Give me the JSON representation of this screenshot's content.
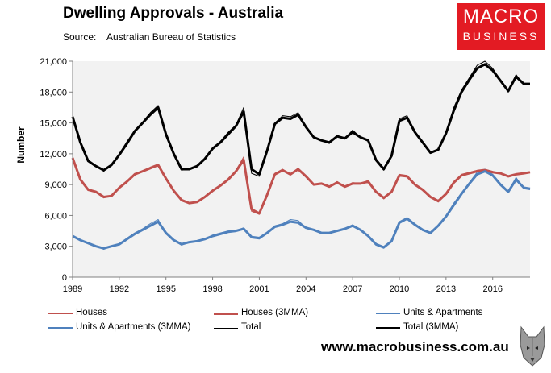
{
  "header": {
    "title": "Dwelling Approvals - Australia",
    "source_label": "Source:",
    "source_value": "Australian Bureau of Statistics"
  },
  "logo": {
    "line1": "MACRO",
    "line2": "BUSINESS",
    "color": "#e31b23"
  },
  "footer": {
    "url": "www.macrobusiness.com.au",
    "mascot": "wolf-head-icon"
  },
  "chart_data": {
    "type": "line",
    "title": "Dwelling Approvals - Australia",
    "xlabel": "",
    "ylabel": "Number",
    "xlim": [
      1989.0,
      2018.4
    ],
    "ylim": [
      0,
      21000
    ],
    "x_ticks": [
      1989,
      1992,
      1995,
      1998,
      2001,
      2004,
      2007,
      2010,
      2013,
      2016
    ],
    "x_tick_labels": [
      "1989",
      "1992",
      "1995",
      "1998",
      "2001",
      "2004",
      "2007",
      "2010",
      "2013",
      "2016"
    ],
    "y_ticks": [
      0,
      3000,
      6000,
      9000,
      12000,
      15000,
      18000,
      21000
    ],
    "y_tick_labels": [
      "0",
      "3,000",
      "6,000",
      "9,000",
      "12,000",
      "15,000",
      "18,000",
      "21,000"
    ],
    "grid": false,
    "legend_position": "bottom",
    "series": [
      {
        "name": "Houses",
        "color": "#c0504d",
        "width": 1,
        "x": [
          1989.0,
          1989.5,
          1990.0,
          1990.5,
          1991.0,
          1991.5,
          1992.0,
          1992.5,
          1993.0,
          1993.5,
          1994.0,
          1994.5,
          1995.0,
          1995.5,
          1996.0,
          1996.5,
          1997.0,
          1997.5,
          1998.0,
          1998.5,
          1999.0,
          1999.5,
          2000.0,
          2000.5,
          2001.0,
          2001.5,
          2002.0,
          2002.5,
          2003.0,
          2003.5,
          2004.0,
          2004.5,
          2005.0,
          2005.5,
          2006.0,
          2006.5,
          2007.0,
          2007.5,
          2008.0,
          2008.5,
          2009.0,
          2009.5,
          2010.0,
          2010.5,
          2011.0,
          2011.5,
          2012.0,
          2012.5,
          2013.0,
          2013.5,
          2014.0,
          2014.5,
          2015.0,
          2015.5,
          2016.0,
          2016.5,
          2017.0,
          2017.5,
          2018.0,
          2018.4
        ],
        "values": [
          11700,
          9400,
          8600,
          8300,
          7700,
          7900,
          8800,
          9300,
          10100,
          10300,
          10700,
          11000,
          9500,
          8400,
          7400,
          7200,
          7300,
          7800,
          8500,
          8900,
          9600,
          10400,
          11700,
          6400,
          6100,
          8000,
          10100,
          10500,
          10000,
          10600,
          9800,
          9000,
          9100,
          8800,
          9300,
          8800,
          9200,
          9100,
          9400,
          8300,
          7600,
          8300,
          10000,
          9900,
          9000,
          8500,
          7800,
          7300,
          8100,
          9300,
          10000,
          10200,
          10400,
          10500,
          10300,
          10100,
          9800,
          10000,
          10100,
          10200
        ]
      },
      {
        "name": "Houses (3MMA)",
        "color": "#c0504d",
        "width": 3,
        "x": [
          1989.0,
          1989.5,
          1990.0,
          1990.5,
          1991.0,
          1991.5,
          1992.0,
          1992.5,
          1993.0,
          1993.5,
          1994.0,
          1994.5,
          1995.0,
          1995.5,
          1996.0,
          1996.5,
          1997.0,
          1997.5,
          1998.0,
          1998.5,
          1999.0,
          1999.5,
          2000.0,
          2000.5,
          2001.0,
          2001.5,
          2002.0,
          2002.5,
          2003.0,
          2003.5,
          2004.0,
          2004.5,
          2005.0,
          2005.5,
          2006.0,
          2006.5,
          2007.0,
          2007.5,
          2008.0,
          2008.5,
          2009.0,
          2009.5,
          2010.0,
          2010.5,
          2011.0,
          2011.5,
          2012.0,
          2012.5,
          2013.0,
          2013.5,
          2014.0,
          2014.5,
          2015.0,
          2015.5,
          2016.0,
          2016.5,
          2017.0,
          2017.5,
          2018.0,
          2018.4
        ],
        "values": [
          11600,
          9500,
          8500,
          8300,
          7800,
          7900,
          8700,
          9300,
          10000,
          10300,
          10600,
          10900,
          9600,
          8400,
          7500,
          7200,
          7300,
          7800,
          8400,
          8900,
          9500,
          10300,
          11400,
          6600,
          6200,
          8000,
          10000,
          10400,
          10000,
          10500,
          9800,
          9000,
          9100,
          8800,
          9200,
          8800,
          9100,
          9100,
          9300,
          8300,
          7700,
          8300,
          9900,
          9800,
          9000,
          8500,
          7800,
          7400,
          8100,
          9200,
          9900,
          10100,
          10300,
          10400,
          10200,
          10100,
          9800,
          10000,
          10100,
          10200
        ]
      },
      {
        "name": "Units & Apartments",
        "color": "#4f81bd",
        "width": 1,
        "x": [
          1989.0,
          1989.5,
          1990.0,
          1990.5,
          1991.0,
          1991.5,
          1992.0,
          1992.5,
          1993.0,
          1993.5,
          1994.0,
          1994.5,
          1995.0,
          1995.5,
          1996.0,
          1996.5,
          1997.0,
          1997.5,
          1998.0,
          1998.5,
          1999.0,
          1999.5,
          2000.0,
          2000.5,
          2001.0,
          2001.5,
          2002.0,
          2002.5,
          2003.0,
          2003.5,
          2004.0,
          2004.5,
          2005.0,
          2005.5,
          2006.0,
          2006.5,
          2007.0,
          2007.5,
          2008.0,
          2008.5,
          2009.0,
          2009.5,
          2010.0,
          2010.5,
          2011.0,
          2011.5,
          2012.0,
          2012.5,
          2013.0,
          2013.5,
          2014.0,
          2014.5,
          2015.0,
          2015.5,
          2016.0,
          2016.5,
          2017.0,
          2017.5,
          2018.0,
          2018.4
        ],
        "values": [
          4000,
          3600,
          3300,
          3000,
          2700,
          3000,
          3200,
          3800,
          4300,
          4700,
          5200,
          5600,
          4200,
          3600,
          3100,
          3400,
          3500,
          3700,
          4100,
          4300,
          4500,
          4500,
          4800,
          3800,
          3700,
          4300,
          5000,
          5200,
          5600,
          5500,
          4800,
          4600,
          4300,
          4200,
          4500,
          4700,
          5100,
          4600,
          4000,
          3100,
          2800,
          3500,
          5400,
          5800,
          5200,
          4600,
          4300,
          5000,
          6000,
          7200,
          8200,
          9200,
          10200,
          10500,
          10000,
          9000,
          8200,
          9700,
          8600,
          8500
        ]
      },
      {
        "name": "Units & Apartments (3MMA)",
        "color": "#4f81bd",
        "width": 3,
        "x": [
          1989.0,
          1989.5,
          1990.0,
          1990.5,
          1991.0,
          1991.5,
          1992.0,
          1992.5,
          1993.0,
          1993.5,
          1994.0,
          1994.5,
          1995.0,
          1995.5,
          1996.0,
          1996.5,
          1997.0,
          1997.5,
          1998.0,
          1998.5,
          1999.0,
          1999.5,
          2000.0,
          2000.5,
          2001.0,
          2001.5,
          2002.0,
          2002.5,
          2003.0,
          2003.5,
          2004.0,
          2004.5,
          2005.0,
          2005.5,
          2006.0,
          2006.5,
          2007.0,
          2007.5,
          2008.0,
          2008.5,
          2009.0,
          2009.5,
          2010.0,
          2010.5,
          2011.0,
          2011.5,
          2012.0,
          2012.5,
          2013.0,
          2013.5,
          2014.0,
          2014.5,
          2015.0,
          2015.5,
          2016.0,
          2016.5,
          2017.0,
          2017.5,
          2018.0,
          2018.4
        ],
        "values": [
          4000,
          3600,
          3300,
          3000,
          2800,
          3000,
          3200,
          3700,
          4200,
          4600,
          5000,
          5400,
          4300,
          3600,
          3200,
          3400,
          3500,
          3700,
          4000,
          4200,
          4400,
          4500,
          4700,
          3900,
          3800,
          4300,
          4900,
          5100,
          5400,
          5300,
          4800,
          4600,
          4300,
          4300,
          4500,
          4700,
          5000,
          4600,
          4000,
          3200,
          2900,
          3500,
          5300,
          5700,
          5100,
          4600,
          4300,
          5000,
          5900,
          7000,
          8100,
          9100,
          10000,
          10300,
          9900,
          9000,
          8300,
          9500,
          8700,
          8600
        ]
      },
      {
        "name": "Total",
        "color": "#000000",
        "width": 1,
        "x": [
          1989.0,
          1989.5,
          1990.0,
          1990.5,
          1991.0,
          1991.5,
          1992.0,
          1992.5,
          1993.0,
          1993.5,
          1994.0,
          1994.5,
          1995.0,
          1995.5,
          1996.0,
          1996.5,
          1997.0,
          1997.5,
          1998.0,
          1998.5,
          1999.0,
          1999.5,
          2000.0,
          2000.5,
          2001.0,
          2001.5,
          2002.0,
          2002.5,
          2003.0,
          2003.5,
          2004.0,
          2004.5,
          2005.0,
          2005.5,
          2006.0,
          2006.5,
          2007.0,
          2007.5,
          2008.0,
          2008.5,
          2009.0,
          2009.5,
          2010.0,
          2010.5,
          2011.0,
          2011.5,
          2012.0,
          2012.5,
          2013.0,
          2013.5,
          2014.0,
          2014.5,
          2015.0,
          2015.5,
          2016.0,
          2016.5,
          2017.0,
          2017.5,
          2018.0,
          2018.4
        ],
        "values": [
          15700,
          13000,
          11300,
          10800,
          10300,
          10900,
          12000,
          13200,
          14300,
          15100,
          16000,
          16700,
          13700,
          11900,
          10400,
          10500,
          10800,
          11500,
          12600,
          13200,
          14100,
          14800,
          16500,
          10100,
          9800,
          12300,
          15000,
          15700,
          15600,
          16000,
          14600,
          13600,
          13300,
          13000,
          13800,
          13500,
          14300,
          13600,
          13400,
          11300,
          10400,
          11800,
          15400,
          15700,
          14200,
          13100,
          12100,
          12400,
          14100,
          16500,
          18200,
          19400,
          20600,
          21000,
          20300,
          19200,
          18000,
          19700,
          18700,
          18700
        ]
      },
      {
        "name": "Total (3MMA)",
        "color": "#000000",
        "width": 3,
        "x": [
          1989.0,
          1989.5,
          1990.0,
          1990.5,
          1991.0,
          1991.5,
          1992.0,
          1992.5,
          1993.0,
          1993.5,
          1994.0,
          1994.5,
          1995.0,
          1995.5,
          1996.0,
          1996.5,
          1997.0,
          1997.5,
          1998.0,
          1998.5,
          1999.0,
          1999.5,
          2000.0,
          2000.5,
          2001.0,
          2001.5,
          2002.0,
          2002.5,
          2003.0,
          2003.5,
          2004.0,
          2004.5,
          2005.0,
          2005.5,
          2006.0,
          2006.5,
          2007.0,
          2007.5,
          2008.0,
          2008.5,
          2009.0,
          2009.5,
          2010.0,
          2010.5,
          2011.0,
          2011.5,
          2012.0,
          2012.5,
          2013.0,
          2013.5,
          2014.0,
          2014.5,
          2015.0,
          2015.5,
          2016.0,
          2016.5,
          2017.0,
          2017.5,
          2018.0,
          2018.4
        ],
        "values": [
          15600,
          13100,
          11300,
          10800,
          10400,
          10900,
          11900,
          13000,
          14200,
          15000,
          15800,
          16500,
          13900,
          12000,
          10500,
          10500,
          10800,
          11500,
          12500,
          13100,
          13900,
          14700,
          16100,
          10500,
          10000,
          12300,
          14900,
          15500,
          15400,
          15800,
          14600,
          13600,
          13300,
          13100,
          13700,
          13500,
          14100,
          13600,
          13300,
          11400,
          10500,
          11800,
          15200,
          15500,
          14100,
          13100,
          12100,
          12400,
          14000,
          16200,
          18000,
          19200,
          20300,
          20700,
          20100,
          19100,
          18100,
          19500,
          18800,
          18800
        ]
      }
    ]
  }
}
